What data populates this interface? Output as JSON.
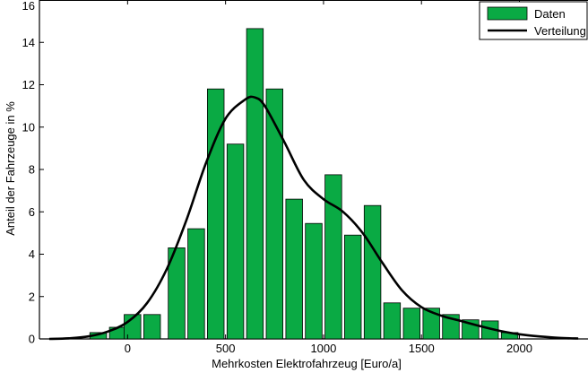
{
  "chart_data": {
    "type": "bar",
    "xlabel": "Mehrkosten Elektrofahrzeug [Euro/a]",
    "ylabel": "Anteil der Fahrzeuge in %",
    "xlim": [
      -450,
      2350
    ],
    "ylim": [
      0,
      16
    ],
    "xticks": [
      0,
      500,
      1000,
      1500,
      2000
    ],
    "yticks": [
      0,
      2,
      4,
      6,
      8,
      10,
      12,
      14,
      16
    ],
    "bar_width": 85,
    "legend_position": "top-right",
    "colors": {
      "bars": "#0aaa44",
      "bar_edge": "#000000",
      "line": "#000000",
      "axis": "#000000"
    },
    "series": [
      {
        "name": "Daten",
        "kind": "bar",
        "x": [
          -150,
          -50,
          25,
          125,
          250,
          350,
          450,
          550,
          650,
          750,
          850,
          950,
          1050,
          1150,
          1250,
          1350,
          1450,
          1550,
          1650,
          1750,
          1850,
          1950
        ],
        "values": [
          0.3,
          0.55,
          1.15,
          1.15,
          4.3,
          5.2,
          11.8,
          9.2,
          14.65,
          11.8,
          6.6,
          5.45,
          7.75,
          4.9,
          6.3,
          1.7,
          1.45,
          1.45,
          1.15,
          0.9,
          0.85,
          0.3
        ]
      },
      {
        "name": "Verteilung",
        "kind": "line",
        "x": [
          -400,
          -300,
          -200,
          -100,
          0,
          100,
          200,
          300,
          400,
          500,
          600,
          650,
          700,
          800,
          900,
          1000,
          1100,
          1200,
          1300,
          1400,
          1500,
          1600,
          1700,
          1800,
          1900,
          2000,
          2100,
          2200,
          2300
        ],
        "values": [
          0.0,
          0.03,
          0.12,
          0.35,
          0.8,
          1.7,
          3.3,
          5.6,
          8.3,
          10.4,
          11.3,
          11.4,
          11.0,
          9.3,
          7.5,
          6.6,
          6.0,
          5.0,
          3.6,
          2.3,
          1.5,
          1.1,
          0.85,
          0.6,
          0.38,
          0.22,
          0.12,
          0.05,
          0.02
        ]
      }
    ]
  }
}
